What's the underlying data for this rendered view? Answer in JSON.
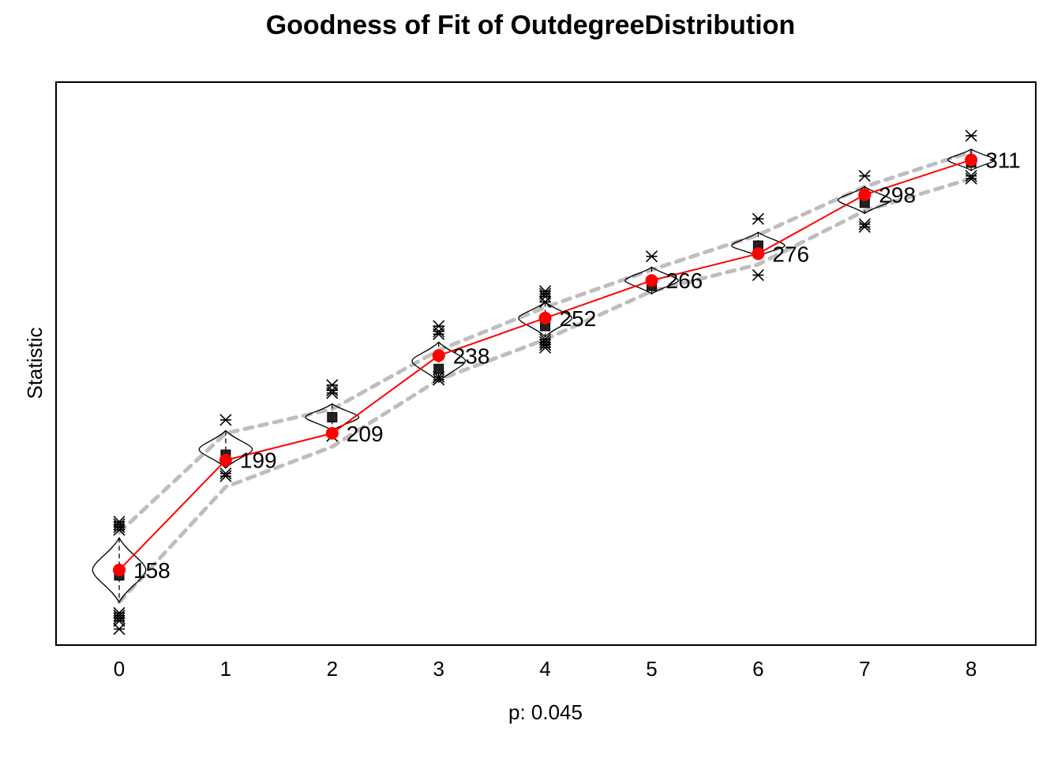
{
  "chart_data": {
    "type": "line",
    "title": "Goodness of Fit of OutdegreeDistribution",
    "xlabel": "p: 0.045",
    "ylabel": "Statistic",
    "categories": [
      "0",
      "1",
      "2",
      "3",
      "4",
      "5",
      "6",
      "7",
      "8"
    ],
    "ylim": [
      130,
      340
    ],
    "observed": {
      "values": [
        158,
        199,
        209,
        238,
        252,
        266,
        276,
        298,
        311
      ],
      "labels": [
        "158",
        "199",
        "209",
        "238",
        "252",
        "266",
        "276",
        "298",
        "311"
      ],
      "color": "#ff0000"
    },
    "simulated_mean": [
      156,
      201,
      215,
      233,
      249,
      264,
      279,
      295,
      310
    ],
    "band_upper": [
      172,
      209,
      218,
      240,
      256,
      270,
      283,
      301,
      314
    ],
    "band_lower": [
      146,
      189,
      204,
      229,
      244,
      262,
      272,
      292,
      304
    ],
    "violins": [
      {
        "center": 158,
        "halfwidth": 0.25,
        "low": 146,
        "high": 170
      },
      {
        "center": 203,
        "halfwidth": 0.25,
        "low": 196,
        "high": 210
      },
      {
        "center": 215,
        "halfwidth": 0.25,
        "low": 210,
        "high": 220
      },
      {
        "center": 236,
        "halfwidth": 0.25,
        "low": 228,
        "high": 243
      },
      {
        "center": 252,
        "halfwidth": 0.25,
        "low": 245,
        "high": 258
      },
      {
        "center": 266,
        "halfwidth": 0.25,
        "low": 261,
        "high": 271
      },
      {
        "center": 279,
        "halfwidth": 0.25,
        "low": 275,
        "high": 284
      },
      {
        "center": 296,
        "halfwidth": 0.25,
        "low": 291,
        "high": 301
      },
      {
        "center": 311,
        "halfwidth": 0.22,
        "low": 307,
        "high": 315
      }
    ],
    "outliers": [
      [
        176,
        175,
        174,
        173,
        142,
        141,
        140,
        139,
        136
      ],
      [
        214,
        194,
        193
      ],
      [
        227,
        225,
        224,
        208
      ],
      [
        249,
        247,
        246,
        230,
        229
      ],
      [
        262,
        261,
        260,
        258,
        244,
        243,
        242,
        241
      ],
      [
        275
      ],
      [
        289,
        268
      ],
      [
        305,
        287,
        286
      ],
      [
        320,
        305,
        304
      ]
    ],
    "band_color": "#bebebe",
    "grid": false,
    "legend": "none"
  }
}
